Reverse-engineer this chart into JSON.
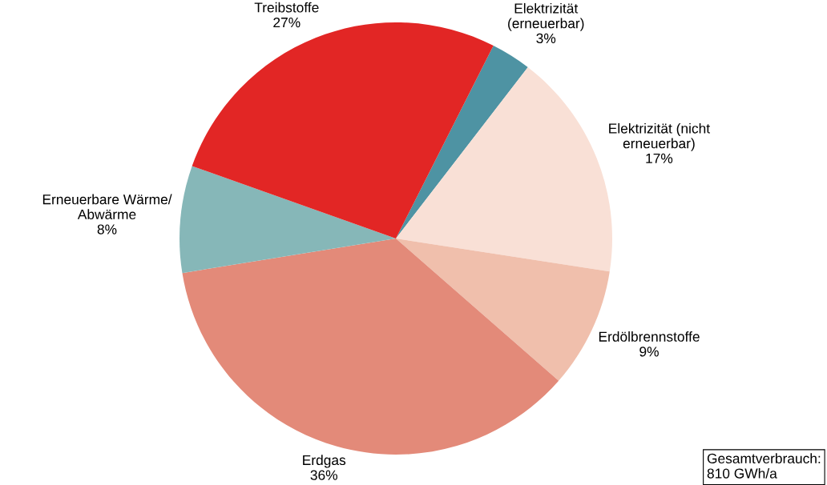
{
  "chart_data": {
    "type": "pie",
    "categories": [
      "Elektrizität\n(erneuerbar)",
      "Elektrizität (nicht\nerneuerbar)",
      "Erdölbrennstoffe",
      "Erdgas",
      "Erneuerbare Wärme/\nAbwärme",
      "Treibstoffe"
    ],
    "values": [
      3,
      17,
      9,
      36,
      8,
      27
    ],
    "value_labels": [
      "3%",
      "17%",
      "9%",
      "36%",
      "8%",
      "27%"
    ],
    "colors": [
      "#4e93a3",
      "#f9e0d6",
      "#f0bfac",
      "#e38a79",
      "#86b7b8",
      "#e22625"
    ],
    "annotations": [
      "Gesamtverbrauch:\n810 GWh/a"
    ]
  }
}
